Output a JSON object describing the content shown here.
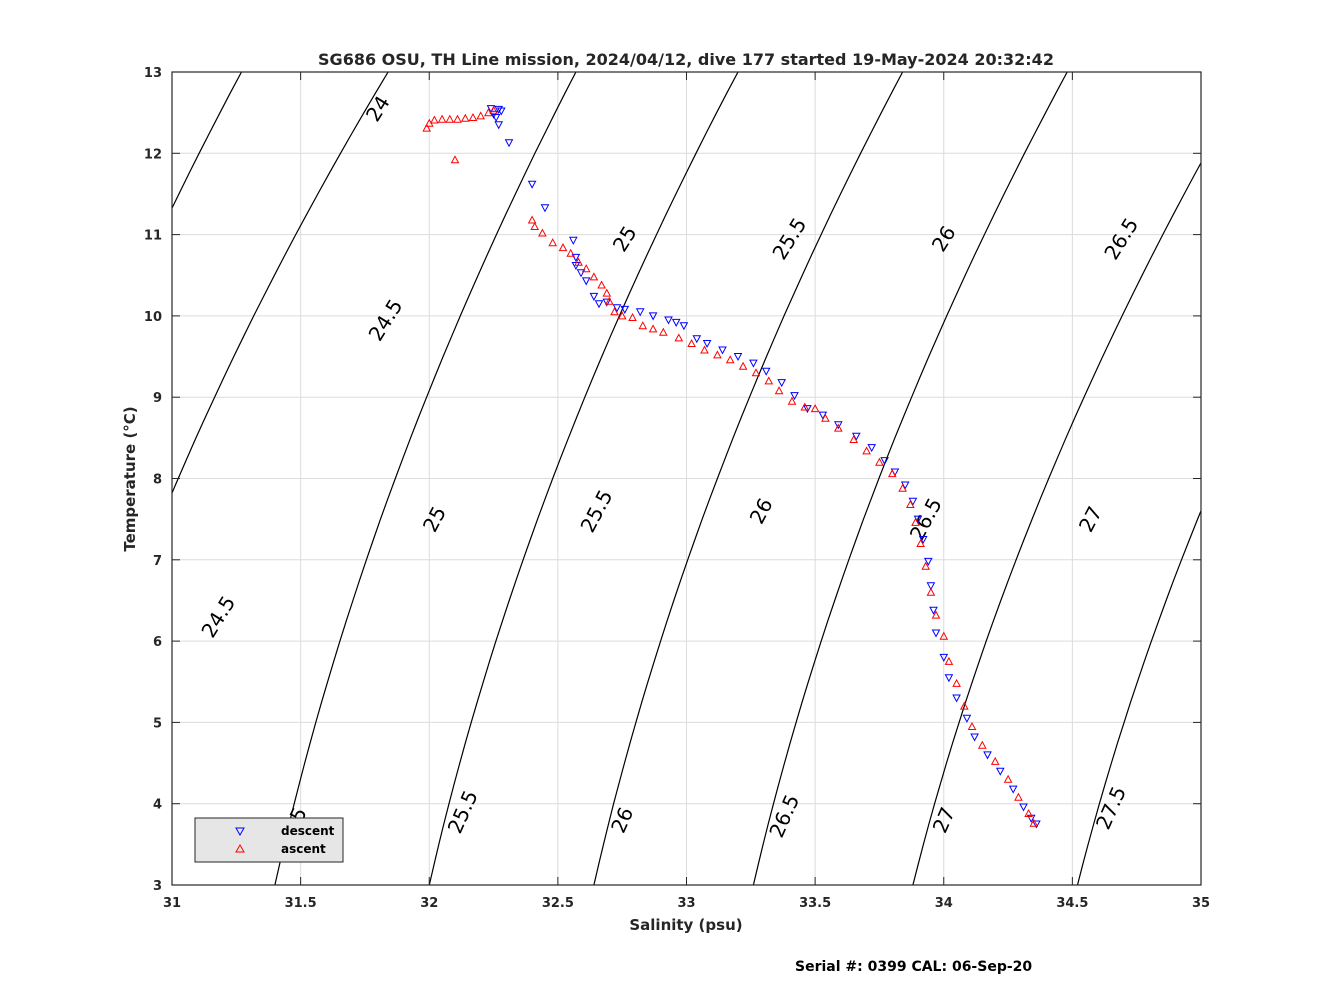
{
  "chart_data": {
    "type": "scatter",
    "title": "SG686 OSU, TH Line mission, 2024/04/12, dive 177 started 19-May-2024 20:32:42",
    "xlabel": "Salinity (psu)",
    "ylabel": "Temperature (°C)",
    "xlim": [
      31,
      35
    ],
    "ylim": [
      3,
      13
    ],
    "xticks": [
      "31",
      "31.5",
      "32",
      "32.5",
      "33",
      "33.5",
      "34",
      "34.5",
      "35"
    ],
    "yticks": [
      "3",
      "4",
      "5",
      "6",
      "7",
      "8",
      "9",
      "10",
      "11",
      "12",
      "13"
    ],
    "grid": true,
    "legend_position": "bottom-left",
    "contour_labels": [
      "24",
      "24.5",
      "25",
      "25.5",
      "26",
      "26.5",
      "27",
      "27.5"
    ],
    "footer": "Serial #: 0399  CAL: 06-Sep-20",
    "series": [
      {
        "name": "descent",
        "marker": "triangle-down",
        "color": "#0000ff",
        "points": [
          [
            32.24,
            12.55
          ],
          [
            32.27,
            12.54
          ],
          [
            32.28,
            12.52
          ],
          [
            32.25,
            12.48
          ],
          [
            32.26,
            12.44
          ],
          [
            32.27,
            12.35
          ],
          [
            32.31,
            12.13
          ],
          [
            32.4,
            11.62
          ],
          [
            32.45,
            11.33
          ],
          [
            32.56,
            10.93
          ],
          [
            32.57,
            10.72
          ],
          [
            32.57,
            10.62
          ],
          [
            32.59,
            10.53
          ],
          [
            32.61,
            10.43
          ],
          [
            32.64,
            10.24
          ],
          [
            32.66,
            10.15
          ],
          [
            32.69,
            10.17
          ],
          [
            32.73,
            10.1
          ],
          [
            32.76,
            10.08
          ],
          [
            32.82,
            10.05
          ],
          [
            32.87,
            10.0
          ],
          [
            32.93,
            9.95
          ],
          [
            32.96,
            9.92
          ],
          [
            32.99,
            9.88
          ],
          [
            33.04,
            9.72
          ],
          [
            33.08,
            9.66
          ],
          [
            33.14,
            9.58
          ],
          [
            33.2,
            9.5
          ],
          [
            33.26,
            9.42
          ],
          [
            33.31,
            9.32
          ],
          [
            33.37,
            9.18
          ],
          [
            33.42,
            9.02
          ],
          [
            33.47,
            8.86
          ],
          [
            33.53,
            8.78
          ],
          [
            33.59,
            8.66
          ],
          [
            33.66,
            8.52
          ],
          [
            33.72,
            8.38
          ],
          [
            33.77,
            8.22
          ],
          [
            33.81,
            8.08
          ],
          [
            33.85,
            7.92
          ],
          [
            33.88,
            7.72
          ],
          [
            33.9,
            7.5
          ],
          [
            33.92,
            7.25
          ],
          [
            33.94,
            6.98
          ],
          [
            33.95,
            6.68
          ],
          [
            33.96,
            6.38
          ],
          [
            33.97,
            6.1
          ],
          [
            34.0,
            5.8
          ],
          [
            34.02,
            5.55
          ],
          [
            34.05,
            5.3
          ],
          [
            34.09,
            5.05
          ],
          [
            34.12,
            4.82
          ],
          [
            34.17,
            4.6
          ],
          [
            34.22,
            4.4
          ],
          [
            34.27,
            4.18
          ],
          [
            34.31,
            3.96
          ],
          [
            34.34,
            3.82
          ],
          [
            34.36,
            3.75
          ]
        ]
      },
      {
        "name": "ascent",
        "marker": "triangle-up",
        "color": "#ff0000",
        "points": [
          [
            31.99,
            12.31
          ],
          [
            32.0,
            12.37
          ],
          [
            32.02,
            12.41
          ],
          [
            32.05,
            12.42
          ],
          [
            32.08,
            12.42
          ],
          [
            32.11,
            12.42
          ],
          [
            32.14,
            12.43
          ],
          [
            32.17,
            12.44
          ],
          [
            32.2,
            12.46
          ],
          [
            32.23,
            12.5
          ],
          [
            32.25,
            12.53
          ],
          [
            32.1,
            11.92
          ],
          [
            32.4,
            11.18
          ],
          [
            32.41,
            11.1
          ],
          [
            32.44,
            11.02
          ],
          [
            32.48,
            10.9
          ],
          [
            32.52,
            10.84
          ],
          [
            32.55,
            10.77
          ],
          [
            32.58,
            10.66
          ],
          [
            32.61,
            10.58
          ],
          [
            32.64,
            10.48
          ],
          [
            32.67,
            10.38
          ],
          [
            32.69,
            10.28
          ],
          [
            32.7,
            10.18
          ],
          [
            32.72,
            10.05
          ],
          [
            32.75,
            10.0
          ],
          [
            32.79,
            9.98
          ],
          [
            32.83,
            9.88
          ],
          [
            32.87,
            9.84
          ],
          [
            32.91,
            9.8
          ],
          [
            32.97,
            9.73
          ],
          [
            33.02,
            9.66
          ],
          [
            33.07,
            9.58
          ],
          [
            33.12,
            9.52
          ],
          [
            33.17,
            9.46
          ],
          [
            33.22,
            9.38
          ],
          [
            33.27,
            9.3
          ],
          [
            33.32,
            9.2
          ],
          [
            33.36,
            9.08
          ],
          [
            33.41,
            8.95
          ],
          [
            33.46,
            8.88
          ],
          [
            33.5,
            8.86
          ],
          [
            33.54,
            8.74
          ],
          [
            33.59,
            8.62
          ],
          [
            33.65,
            8.48
          ],
          [
            33.7,
            8.34
          ],
          [
            33.75,
            8.2
          ],
          [
            33.8,
            8.06
          ],
          [
            33.84,
            7.88
          ],
          [
            33.87,
            7.68
          ],
          [
            33.89,
            7.46
          ],
          [
            33.91,
            7.2
          ],
          [
            33.93,
            6.92
          ],
          [
            33.95,
            6.6
          ],
          [
            33.97,
            6.32
          ],
          [
            34.0,
            6.06
          ],
          [
            34.02,
            5.75
          ],
          [
            34.05,
            5.48
          ],
          [
            34.08,
            5.2
          ],
          [
            34.11,
            4.95
          ],
          [
            34.15,
            4.72
          ],
          [
            34.2,
            4.52
          ],
          [
            34.25,
            4.3
          ],
          [
            34.29,
            4.08
          ],
          [
            34.33,
            3.88
          ],
          [
            34.35,
            3.76
          ]
        ]
      }
    ]
  }
}
